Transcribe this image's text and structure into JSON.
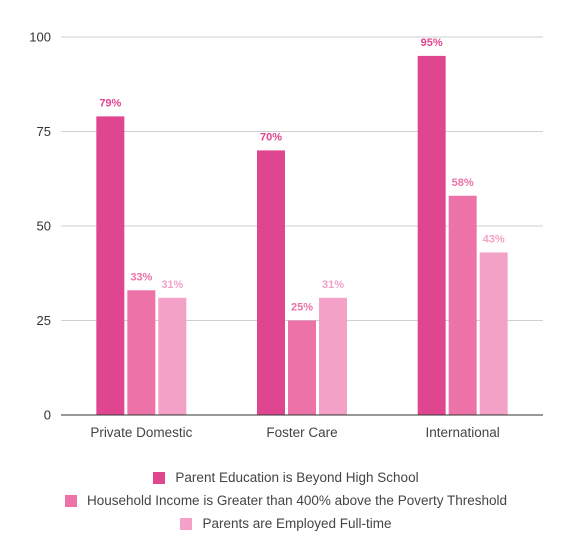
{
  "chart_data": {
    "type": "bar",
    "title": "",
    "xlabel": "",
    "ylabel": "",
    "categories": [
      "Private Domestic",
      "Foster Care",
      "International"
    ],
    "ylim": [
      0,
      100
    ],
    "yticks": [
      0,
      25,
      50,
      75,
      100
    ],
    "grid": true,
    "legend_position": "bottom",
    "series": [
      {
        "name": "Parent Education is Beyond High School",
        "values": [
          79,
          70,
          95
        ],
        "labels": [
          "79%",
          "70%",
          "95%"
        ],
        "color": "#e0458f"
      },
      {
        "name": "Household Income is Greater than 400% above the Poverty Threshold",
        "values": [
          33,
          25,
          58
        ],
        "labels": [
          "33%",
          "25%",
          "58%"
        ],
        "color": "#ec72a8"
      },
      {
        "name": "Parents are Employed Full-time",
        "values": [
          31,
          31,
          43
        ],
        "labels": [
          "31%",
          "31%",
          "43%"
        ],
        "color": "#f3a1c6"
      }
    ]
  }
}
